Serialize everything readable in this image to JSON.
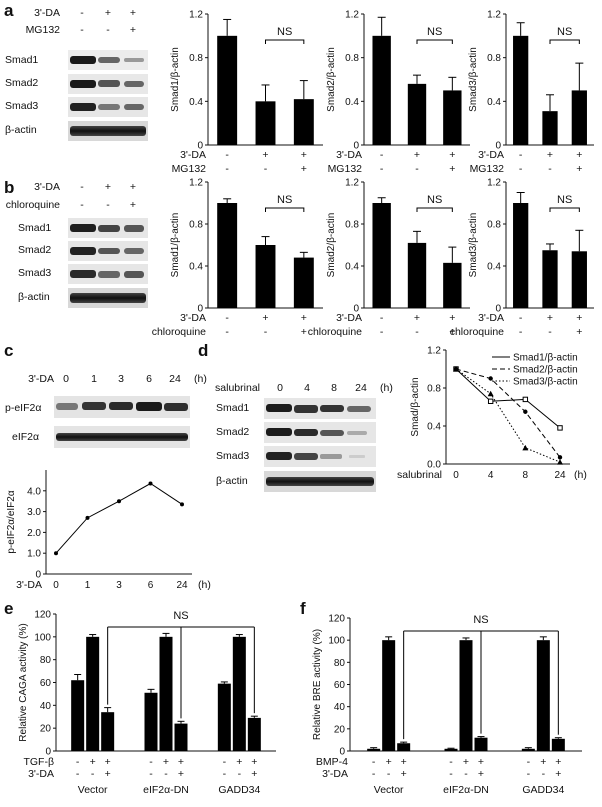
{
  "panels": {
    "a": {
      "letter": "a",
      "blot": {
        "lanes": [
          {
            "label": "3'-DA",
            "marks": [
              "-",
              "+",
              "+"
            ]
          },
          {
            "label": "MG132",
            "marks": [
              "-",
              "-",
              "+"
            ]
          }
        ],
        "bands": [
          "Smad1",
          "Smad2",
          "Smad3",
          "β-actin"
        ]
      },
      "treatments": [
        {
          "label": "3'-DA",
          "marks": [
            "-",
            "+",
            "+"
          ]
        },
        {
          "label": "MG132",
          "marks": [
            "-",
            "-",
            "+"
          ]
        }
      ]
    },
    "b": {
      "letter": "b",
      "blot": {
        "lanes": [
          {
            "label": "3'-DA",
            "marks": [
              "-",
              "+",
              "+"
            ]
          },
          {
            "label": "chloroquine",
            "marks": [
              "-",
              "-",
              "+"
            ]
          }
        ],
        "bands": [
          "Smad1",
          "Smad2",
          "Smad3",
          "β-actin"
        ]
      },
      "treatments": [
        {
          "label": "3'-DA",
          "marks": [
            "-",
            "+",
            "+"
          ]
        },
        {
          "label": "chloroquine",
          "marks": [
            "-",
            "-",
            "+"
          ]
        }
      ]
    },
    "c": {
      "letter": "c",
      "blot": {
        "lane_label": "3'-DA",
        "timepoints": [
          "0",
          "1",
          "3",
          "6",
          "24"
        ],
        "unit": "(h)",
        "bands": [
          "p-eIF2α",
          "eIF2α"
        ]
      }
    },
    "d": {
      "letter": "d",
      "blot": {
        "lane_label": "salubrinal",
        "timepoints": [
          "0",
          "4",
          "8",
          "24"
        ],
        "unit": "(h)",
        "bands": [
          "Smad1",
          "Smad2",
          "Smad3",
          "β-actin"
        ]
      }
    },
    "e": {
      "letter": "e",
      "treatments": [
        {
          "label": "TGF-β",
          "marks": [
            "-",
            "+",
            "+"
          ]
        },
        {
          "label": "3'-DA",
          "marks": [
            "-",
            "-",
            "+"
          ]
        }
      ]
    },
    "f": {
      "letter": "f",
      "treatments": [
        {
          "label": "BMP-4",
          "marks": [
            "-",
            "+",
            "+"
          ]
        },
        {
          "label": "3'-DA",
          "marks": [
            "-",
            "-",
            "+"
          ]
        }
      ]
    }
  },
  "chart_data": [
    {
      "id": "a1",
      "type": "bar",
      "ylabel": "Smad1/β-actin",
      "categories": [
        "1",
        "2",
        "3"
      ],
      "values": [
        1.0,
        0.4,
        0.42
      ],
      "errors": [
        0.15,
        0.15,
        0.17
      ],
      "ylim": [
        0,
        1.2
      ],
      "yticks": [
        "0",
        "0.4",
        "0.8",
        "1.2"
      ],
      "bracket": [
        1,
        2
      ],
      "bracket_label": "NS"
    },
    {
      "id": "a2",
      "type": "bar",
      "ylabel": "Smad2/β-actin",
      "categories": [
        "1",
        "2",
        "3"
      ],
      "values": [
        1.0,
        0.56,
        0.5
      ],
      "errors": [
        0.17,
        0.08,
        0.12
      ],
      "ylim": [
        0,
        1.2
      ],
      "yticks": [
        "0",
        "0.4",
        "0.8",
        "1.2"
      ],
      "bracket": [
        1,
        2
      ],
      "bracket_label": "NS"
    },
    {
      "id": "a3",
      "type": "bar",
      "ylabel": "Smad3/β-actin",
      "categories": [
        "1",
        "2",
        "3"
      ],
      "values": [
        1.0,
        0.31,
        0.5
      ],
      "errors": [
        0.12,
        0.15,
        0.25
      ],
      "ylim": [
        0,
        1.2
      ],
      "yticks": [
        "0",
        "0.4",
        "0.8",
        "1.2"
      ],
      "bracket": [
        1,
        2
      ],
      "bracket_label": "NS"
    },
    {
      "id": "b1",
      "type": "bar",
      "ylabel": "Smad1/β-actin",
      "categories": [
        "1",
        "2",
        "3"
      ],
      "values": [
        1.0,
        0.6,
        0.48
      ],
      "errors": [
        0.04,
        0.08,
        0.05
      ],
      "ylim": [
        0,
        1.2
      ],
      "yticks": [
        "0",
        "0.4",
        "0.8",
        "1.2"
      ],
      "bracket": [
        1,
        2
      ],
      "bracket_label": "NS"
    },
    {
      "id": "b2",
      "type": "bar",
      "ylabel": "Smad2/β-actin",
      "categories": [
        "1",
        "2",
        "3"
      ],
      "values": [
        1.0,
        0.62,
        0.43
      ],
      "errors": [
        0.05,
        0.11,
        0.15
      ],
      "ylim": [
        0,
        1.2
      ],
      "yticks": [
        "0",
        "0.4",
        "0.8",
        "1.2"
      ],
      "bracket": [
        1,
        2
      ],
      "bracket_label": "NS"
    },
    {
      "id": "b3",
      "type": "bar",
      "ylabel": "Smad3/β-actin",
      "categories": [
        "1",
        "2",
        "3"
      ],
      "values": [
        1.0,
        0.55,
        0.54
      ],
      "errors": [
        0.1,
        0.06,
        0.2
      ],
      "ylim": [
        0,
        1.2
      ],
      "yticks": [
        "0",
        "0.4",
        "0.8",
        "1.2"
      ],
      "bracket": [
        1,
        2
      ],
      "bracket_label": "NS"
    },
    {
      "id": "c",
      "type": "line",
      "ylabel": "p-eIF2α/eIF2α",
      "xlabel_left": "3'-DA",
      "x_unit": "(h)",
      "categories": [
        "0",
        "1",
        "3",
        "6",
        "24"
      ],
      "values": [
        1.0,
        2.7,
        3.5,
        4.35,
        3.35
      ],
      "ylim": [
        0,
        5.0
      ],
      "yticks": [
        "0",
        "1.0",
        "2.0",
        "3.0",
        "4.0"
      ]
    },
    {
      "id": "d",
      "type": "line",
      "ylabel": "Smad/β-actin",
      "xlabel_left": "salubrinal",
      "x_unit": "(h)",
      "categories": [
        "0",
        "4",
        "8",
        "24"
      ],
      "ylim": [
        0,
        1.2
      ],
      "yticks": [
        "0.0",
        "0.4",
        "0.8",
        "1.2"
      ],
      "legend_position": "top-right",
      "series": [
        {
          "name": "Smad1/β-actin",
          "values": [
            1.0,
            0.66,
            0.68,
            0.38
          ],
          "dash": "",
          "marker": "square-open"
        },
        {
          "name": "Smad2/β-actin",
          "values": [
            1.0,
            0.9,
            0.55,
            0.07
          ],
          "dash": "5,3",
          "marker": "circle"
        },
        {
          "name": "Smad3/β-actin",
          "values": [
            1.0,
            0.74,
            0.17,
            0.02
          ],
          "dash": "1.5,2",
          "marker": "triangle"
        }
      ]
    },
    {
      "id": "e",
      "type": "bar",
      "ylabel": "Relative CAGA activity (%)",
      "ylim": [
        0,
        120
      ],
      "yticks": [
        "0",
        "20",
        "40",
        "60",
        "80",
        "100",
        "120"
      ],
      "groups": [
        "Vector",
        "eIF2α-DN",
        "GADD34"
      ],
      "values": [
        [
          62,
          100,
          34
        ],
        [
          51,
          100,
          24
        ],
        [
          59,
          100,
          29
        ]
      ],
      "errors": [
        [
          5,
          2,
          4
        ],
        [
          3,
          3,
          2
        ],
        [
          1.5,
          2,
          1.5
        ]
      ],
      "bracket_label": "NS"
    },
    {
      "id": "f",
      "type": "bar",
      "ylabel": "Relative BRE activity (%)",
      "ylim": [
        0,
        120
      ],
      "yticks": [
        "0",
        "20",
        "40",
        "60",
        "80",
        "100",
        "120"
      ],
      "groups": [
        "Vector",
        "eIF2α-DN",
        "GADD34"
      ],
      "values": [
        [
          2,
          100,
          7
        ],
        [
          2,
          100,
          12
        ],
        [
          2,
          100,
          11
        ]
      ],
      "errors": [
        [
          1,
          3,
          1
        ],
        [
          0.5,
          2,
          1
        ],
        [
          1,
          3,
          1
        ]
      ],
      "bracket_label": "NS"
    }
  ]
}
